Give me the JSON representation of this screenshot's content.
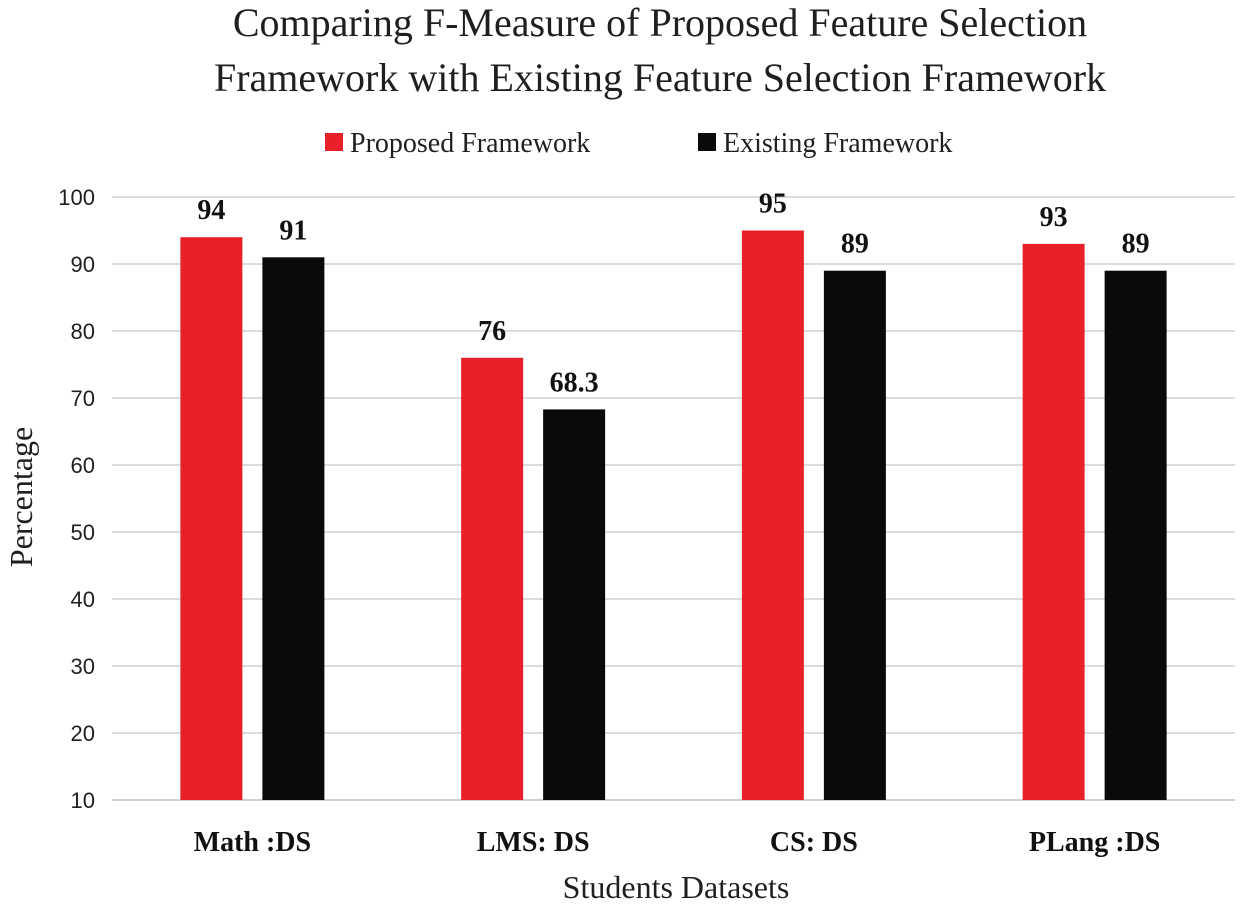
{
  "chart_data": {
    "type": "bar",
    "title_lines": [
      "Comparing F-Measure of Proposed Feature Selection",
      "Framework with Existing  Feature Selection Framework"
    ],
    "xlabel": "Students Datasets",
    "ylabel": "Percentage",
    "categories": [
      "Math :DS",
      "LMS: DS",
      "CS: DS",
      "PLang :DS"
    ],
    "series": [
      {
        "name": "Proposed Framework",
        "color": "#e8202a",
        "values": [
          94,
          76,
          95,
          93
        ]
      },
      {
        "name": "Existing Framework",
        "color": "#0a0a0a",
        "values": [
          91,
          68.3,
          89,
          89
        ]
      }
    ],
    "ylim": [
      10,
      100
    ],
    "yticks": [
      10,
      20,
      30,
      40,
      50,
      60,
      70,
      80,
      90,
      100
    ],
    "grid": true,
    "legend_position": "top-center",
    "gridline_color": "#d0d0d0"
  }
}
